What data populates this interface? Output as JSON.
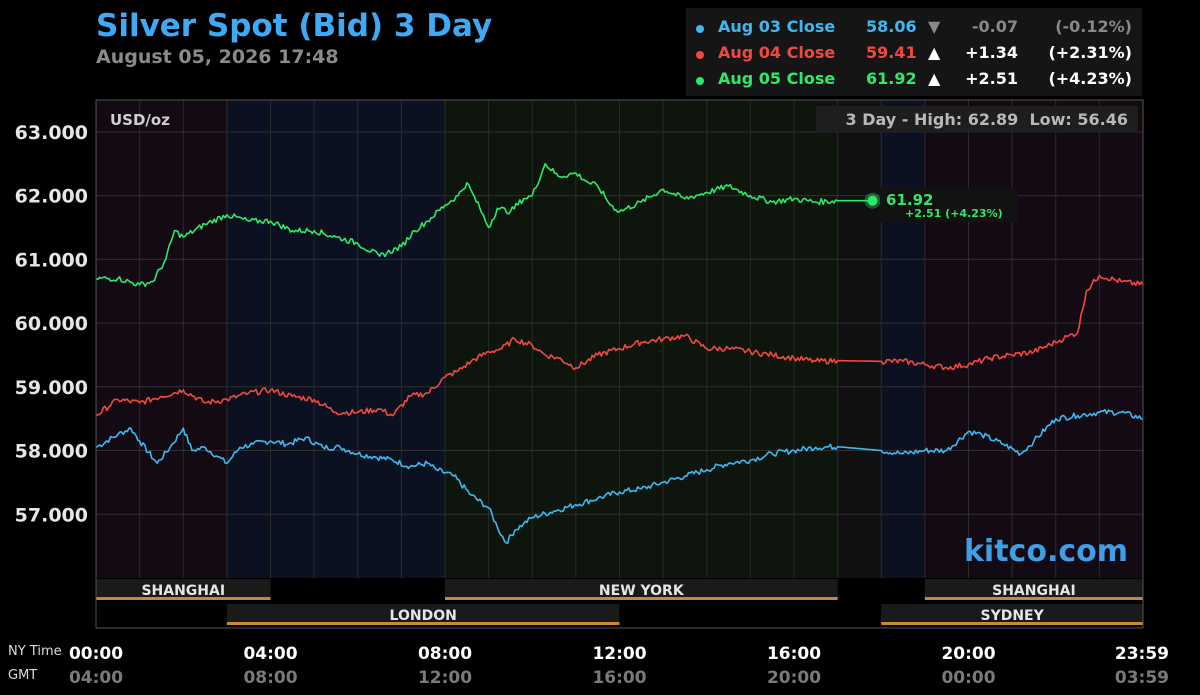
{
  "header": {
    "title": "Silver Spot (Bid) 3 Day",
    "timestamp": "August 05, 2026 17:48"
  },
  "legend": [
    {
      "label": "Aug 03 Close",
      "close": "58.06",
      "arrow": "▼",
      "change": "-0.07",
      "percent": "(-0.12%)",
      "color": "#3fb8f0",
      "arrow_color": "#888888"
    },
    {
      "label": "Aug 04 Close",
      "close": "59.41",
      "arrow": "▲",
      "change": "+1.34",
      "percent": "(+2.31%)",
      "color": "#f04a3e",
      "arrow_color": "#ffffff"
    },
    {
      "label": "Aug 05 Close",
      "close": "61.92",
      "arrow": "▲",
      "change": "+2.51",
      "percent": "(+4.23%)",
      "color": "#2ee86a",
      "arrow_color": "#ffffff"
    }
  ],
  "plot": {
    "unit_label": "USD/oz",
    "high_low_label": "3 Day - High: 62.89  Low: 56.46",
    "watermark": "kitco.com",
    "last_value": "61.92",
    "last_change": "+2.51 (+4.23%)"
  },
  "sessions": [
    {
      "name": "SHANGHAI",
      "start": 0,
      "end": 4,
      "row": 1
    },
    {
      "name": "NEW YORK",
      "start": 8,
      "end": 17,
      "row": 1
    },
    {
      "name": "SHANGHAI",
      "start": 19,
      "end": 24,
      "row": 1
    },
    {
      "name": "LONDON",
      "start": 3,
      "end": 12,
      "row": 2
    },
    {
      "name": "SYDNEY",
      "start": 18,
      "end": 24,
      "row": 2
    }
  ],
  "time_axis": {
    "ny_label": "NY Time",
    "gmt_label": "GMT",
    "hours": [
      0,
      4,
      8,
      12,
      16,
      20,
      23.983
    ],
    "ny_ticks": [
      "00:00",
      "04:00",
      "08:00",
      "12:00",
      "16:00",
      "20:00",
      "23:59"
    ],
    "gmt_ticks": [
      "04:00",
      "08:00",
      "12:00",
      "16:00",
      "20:00",
      "00:00",
      "03:59"
    ]
  },
  "chart_data": {
    "type": "line",
    "title": "Silver Spot (Bid) 3 Day",
    "ylabel": "USD/oz",
    "xlabel": "NY Time",
    "ylim": [
      56.0,
      63.5
    ],
    "xlim_hours": [
      0,
      24
    ],
    "y_ticks": [
      57.0,
      58.0,
      59.0,
      60.0,
      61.0,
      62.0,
      63.0
    ],
    "y_tick_labels": [
      "57.000",
      "58.000",
      "59.000",
      "60.000",
      "61.000",
      "62.000",
      "63.000"
    ],
    "closed_period_hours": [
      17,
      18
    ],
    "series": [
      {
        "name": "Aug 03",
        "color": "#3fb8f0",
        "x": [
          0,
          0.5,
          0.8,
          1.0,
          1.4,
          1.7,
          2.0,
          2.2,
          2.5,
          2.8,
          3.0,
          3.3,
          3.6,
          4.0,
          4.4,
          4.8,
          5.2,
          5.6,
          6.0,
          6.4,
          6.8,
          7.2,
          7.6,
          7.8,
          8.2,
          8.6,
          9.0,
          9.2,
          9.4,
          9.6,
          9.8,
          10.0,
          10.5,
          11.0,
          11.5,
          12.0,
          12.5,
          13.0,
          13.5,
          14.0,
          14.5,
          15.0,
          15.5,
          16.0,
          16.5,
          17.0,
          18.0,
          18.5,
          19.0,
          19.5,
          20.0,
          20.3,
          20.8,
          21.2,
          21.5,
          22.0,
          22.5,
          23.0,
          23.5,
          24.0
        ],
        "y": [
          58.05,
          58.25,
          58.35,
          58.15,
          57.8,
          58.05,
          58.35,
          58.0,
          58.05,
          57.9,
          57.8,
          58.05,
          58.1,
          58.15,
          58.1,
          58.2,
          58.05,
          58.05,
          57.95,
          57.9,
          57.85,
          57.75,
          57.8,
          57.7,
          57.6,
          57.3,
          57.1,
          56.8,
          56.55,
          56.75,
          56.85,
          56.95,
          57.05,
          57.15,
          57.25,
          57.35,
          57.4,
          57.5,
          57.6,
          57.7,
          57.8,
          57.85,
          57.95,
          58.0,
          58.05,
          58.06,
          58.0,
          57.95,
          58.0,
          58.0,
          58.3,
          58.25,
          58.1,
          57.95,
          58.15,
          58.5,
          58.55,
          58.6,
          58.6,
          58.5
        ]
      },
      {
        "name": "Aug 04",
        "color": "#f04a3e",
        "x": [
          0,
          0.5,
          1.0,
          1.5,
          2.0,
          2.5,
          3.0,
          3.5,
          4.0,
          4.5,
          5.0,
          5.5,
          6.0,
          6.5,
          6.8,
          7.2,
          7.6,
          8.0,
          8.3,
          8.6,
          9.0,
          9.3,
          9.6,
          10.0,
          10.3,
          10.6,
          11.0,
          11.5,
          12.0,
          12.5,
          13.0,
          13.5,
          14.0,
          14.5,
          15.0,
          15.5,
          16.0,
          16.5,
          17.0,
          18.0,
          18.5,
          19.0,
          19.5,
          20.0,
          20.5,
          21.0,
          21.5,
          22.0,
          22.3,
          22.5,
          22.7,
          23.0,
          23.5,
          24.0
        ],
        "y": [
          58.55,
          58.8,
          58.75,
          58.85,
          58.95,
          58.75,
          58.8,
          58.9,
          58.95,
          58.85,
          58.8,
          58.6,
          58.6,
          58.65,
          58.55,
          58.85,
          58.9,
          59.15,
          59.25,
          59.4,
          59.55,
          59.6,
          59.75,
          59.65,
          59.5,
          59.45,
          59.3,
          59.5,
          59.6,
          59.7,
          59.75,
          59.8,
          59.6,
          59.6,
          59.55,
          59.5,
          59.45,
          59.4,
          59.41,
          59.4,
          59.4,
          59.35,
          59.3,
          59.35,
          59.45,
          59.5,
          59.55,
          59.7,
          59.8,
          59.85,
          60.5,
          60.75,
          60.65,
          60.6
        ]
      },
      {
        "name": "Aug 05",
        "color": "#2ee86a",
        "x": [
          0,
          0.5,
          1.0,
          1.3,
          1.6,
          1.8,
          2.0,
          2.5,
          3.0,
          3.5,
          4.0,
          4.5,
          5.0,
          5.5,
          6.0,
          6.5,
          7.0,
          7.3,
          7.6,
          8.0,
          8.3,
          8.5,
          8.8,
          9.0,
          9.2,
          9.5,
          9.8,
          10.0,
          10.3,
          10.6,
          11.0,
          11.3,
          11.5,
          11.8,
          12.0,
          12.5,
          13.0,
          13.5,
          14.0,
          14.5,
          15.0,
          15.5,
          16.0,
          16.5,
          17.0,
          17.8
        ],
        "y": [
          60.7,
          60.7,
          60.6,
          60.65,
          61.0,
          61.45,
          61.35,
          61.55,
          61.7,
          61.6,
          61.6,
          61.45,
          61.45,
          61.35,
          61.25,
          61.05,
          61.2,
          61.45,
          61.6,
          61.85,
          62.0,
          62.2,
          61.8,
          61.5,
          61.8,
          61.75,
          61.95,
          62.0,
          62.5,
          62.3,
          62.35,
          62.2,
          62.15,
          61.85,
          61.75,
          61.9,
          62.1,
          61.95,
          62.05,
          62.15,
          62.0,
          61.9,
          61.95,
          61.9,
          61.92,
          61.92
        ]
      }
    ]
  }
}
